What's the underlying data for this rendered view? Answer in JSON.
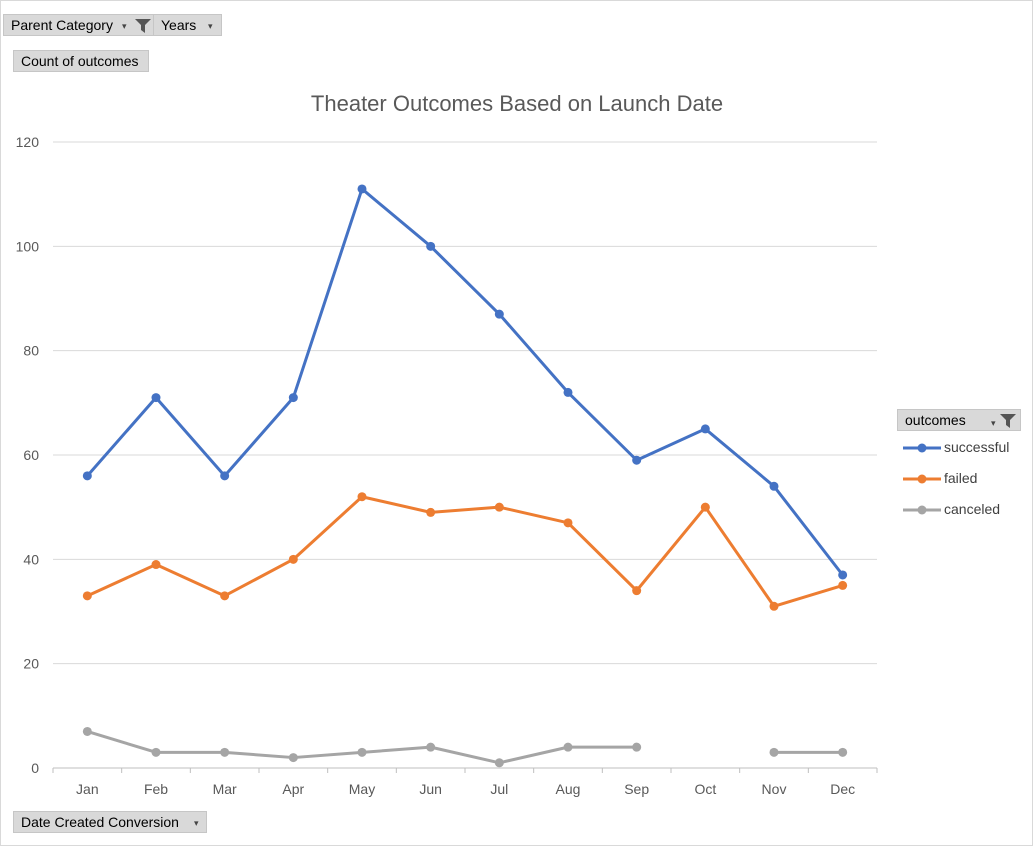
{
  "filters": {
    "parent_category": "Parent Category",
    "years": "Years",
    "values_field": "Count of outcomes",
    "axis_field": "Date Created Conversion",
    "legend_field": "outcomes"
  },
  "icons": {
    "filter": "funnel-filter-icon",
    "dropdown": "dropdown-arrow-icon"
  },
  "chart_data": {
    "type": "line",
    "title": "Theater Outcomes Based on Launch Date",
    "xlabel": "",
    "ylabel": "",
    "categories": [
      "Jan",
      "Feb",
      "Mar",
      "Apr",
      "May",
      "Jun",
      "Jul",
      "Aug",
      "Sep",
      "Oct",
      "Nov",
      "Dec"
    ],
    "ylim": [
      0,
      120
    ],
    "yticks": [
      "0",
      "20",
      "40",
      "60",
      "80",
      "100",
      "120"
    ],
    "grid": true,
    "legend_position": "right",
    "series": [
      {
        "name": "successful",
        "color": "#4472c4",
        "values": [
          56,
          71,
          56,
          71,
          111,
          100,
          87,
          72,
          59,
          65,
          54,
          37
        ]
      },
      {
        "name": "failed",
        "color": "#ed7d31",
        "values": [
          33,
          39,
          33,
          40,
          52,
          49,
          50,
          47,
          34,
          50,
          31,
          35
        ]
      },
      {
        "name": "canceled",
        "color": "#a5a5a5",
        "values": [
          7,
          3,
          3,
          2,
          3,
          4,
          1,
          4,
          4,
          null,
          3,
          3
        ]
      }
    ]
  }
}
